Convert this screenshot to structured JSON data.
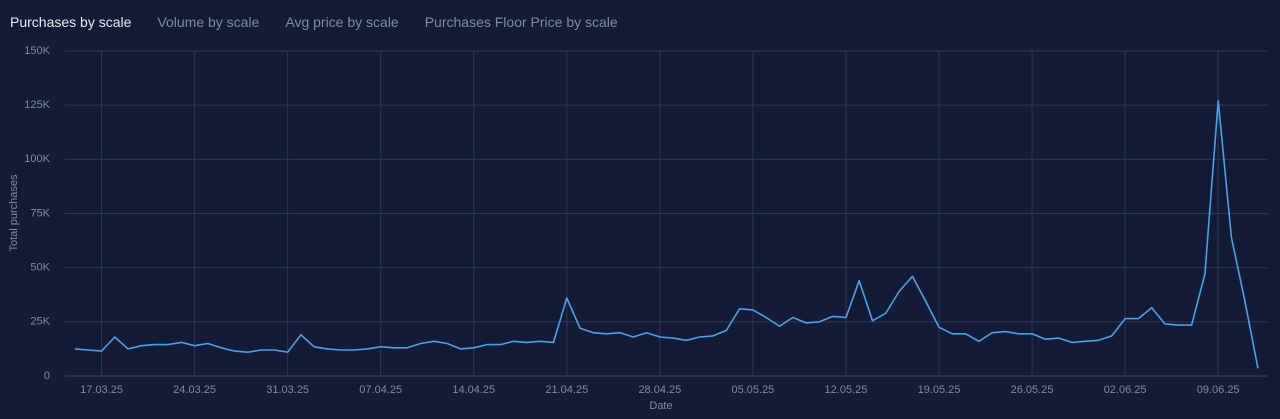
{
  "tabs": [
    "Purchases by scale",
    "Volume by scale",
    "Avg price by scale",
    "Purchases Floor Price by scale"
  ],
  "chart_data": {
    "type": "line",
    "x_label": "Date",
    "y_label": "Total purchases",
    "grid": true,
    "x": [
      "15.03.25",
      "16.03.25",
      "17.03.25",
      "18.03.25",
      "19.03.25",
      "20.03.25",
      "21.03.25",
      "22.03.25",
      "23.03.25",
      "24.03.25",
      "25.03.25",
      "26.03.25",
      "27.03.25",
      "28.03.25",
      "29.03.25",
      "30.03.25",
      "31.03.25",
      "01.04.25",
      "02.04.25",
      "03.04.25",
      "04.04.25",
      "05.04.25",
      "06.04.25",
      "07.04.25",
      "08.04.25",
      "09.04.25",
      "10.04.25",
      "11.04.25",
      "12.04.25",
      "13.04.25",
      "14.04.25",
      "15.04.25",
      "16.04.25",
      "17.04.25",
      "18.04.25",
      "19.04.25",
      "20.04.25",
      "21.04.25",
      "22.04.25",
      "23.04.25",
      "24.04.25",
      "25.04.25",
      "26.04.25",
      "27.04.25",
      "28.04.25",
      "29.04.25",
      "30.04.25",
      "01.05.25",
      "02.05.25",
      "03.05.25",
      "04.05.25",
      "05.05.25",
      "06.05.25",
      "07.05.25",
      "08.05.25",
      "09.05.25",
      "10.05.25",
      "11.05.25",
      "12.05.25",
      "13.05.25",
      "14.05.25",
      "15.05.25",
      "16.05.25",
      "17.05.25",
      "18.05.25",
      "19.05.25",
      "20.05.25",
      "21.05.25",
      "22.05.25",
      "23.05.25",
      "24.05.25",
      "25.05.25",
      "26.05.25",
      "27.05.25",
      "28.05.25",
      "29.05.25",
      "30.05.25",
      "31.05.25",
      "01.06.25",
      "02.06.25",
      "03.06.25",
      "04.06.25",
      "05.06.25",
      "06.06.25",
      "07.06.25",
      "08.06.25",
      "09.06.25",
      "10.06.25",
      "11.06.25",
      "12.06.25"
    ],
    "series": [
      {
        "name": "Total purchases",
        "color": "#4d9fe6",
        "values": [
          12500,
          12000,
          11500,
          18000,
          12500,
          14000,
          14500,
          14500,
          15500,
          14000,
          15000,
          13000,
          11500,
          11000,
          12000,
          12000,
          11000,
          19000,
          13500,
          12500,
          12000,
          12000,
          12500,
          13500,
          13000,
          13000,
          15000,
          16000,
          15000,
          12500,
          13000,
          14500,
          14500,
          16000,
          15500,
          16000,
          15500,
          36000,
          22000,
          20000,
          19500,
          20000,
          18000,
          20000,
          18000,
          17500,
          16500,
          18000,
          18500,
          21000,
          31000,
          30500,
          27000,
          23000,
          27000,
          24500,
          25000,
          27500,
          27000,
          44000,
          25500,
          29000,
          39000,
          46000,
          34500,
          22500,
          19500,
          19500,
          16000,
          20000,
          20500,
          19500,
          19500,
          17000,
          17500,
          15500,
          16000,
          16500,
          18500,
          26500,
          26500,
          31500,
          24000,
          23500,
          23500,
          47000,
          127000,
          64000,
          35000,
          3500
        ]
      }
    ],
    "xticks": [
      "17.03.25",
      "24.03.25",
      "31.03.25",
      "07.04.25",
      "14.04.25",
      "21.04.25",
      "28.04.25",
      "05.05.25",
      "12.05.25",
      "19.05.25",
      "26.05.25",
      "02.06.25",
      "09.06.25"
    ],
    "ylim": [
      0,
      150000
    ],
    "yticks": [
      0,
      {
        "value": 25000,
        "label": "25K"
      },
      {
        "value": 50000,
        "label": "50K"
      },
      {
        "value": 75000,
        "label": "75K"
      },
      {
        "value": 100000,
        "label": "100K"
      },
      {
        "value": 125000,
        "label": "125K"
      },
      {
        "value": 150000,
        "label": "150K"
      }
    ]
  }
}
